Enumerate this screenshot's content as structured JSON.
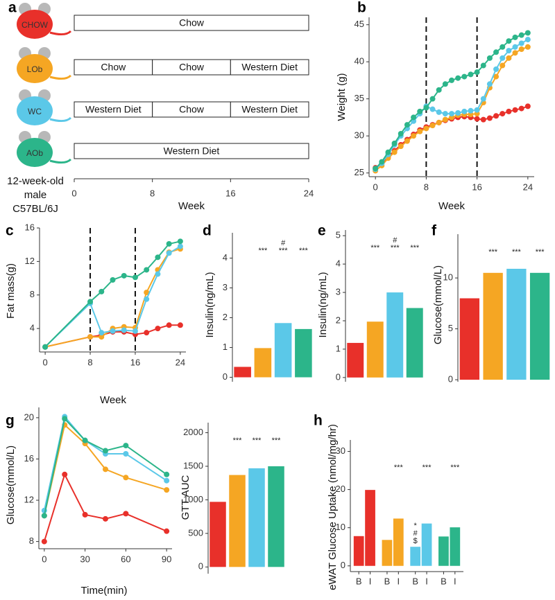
{
  "chart_data": [
    {
      "type": "schedule",
      "panel": "a",
      "groups": [
        {
          "name": "CHOW",
          "color": "#e8302a",
          "segments": [
            {
              "label": "Chow",
              "start": 0,
              "end": 24
            }
          ]
        },
        {
          "name": "LOb",
          "color": "#f5a623",
          "segments": [
            {
              "label": "Chow",
              "start": 0,
              "end": 8
            },
            {
              "label": "Chow",
              "start": 8,
              "end": 16
            },
            {
              "label": "Western Diet",
              "start": 16,
              "end": 24
            }
          ]
        },
        {
          "name": "WC",
          "color": "#5bc8e8",
          "segments": [
            {
              "label": "Western Diet",
              "start": 0,
              "end": 8
            },
            {
              "label": "Chow",
              "start": 8,
              "end": 16
            },
            {
              "label": "Western Diet",
              "start": 16,
              "end": 24
            }
          ]
        },
        {
          "name": "AOb",
          "color": "#2cb58a",
          "segments": [
            {
              "label": "Western Diet",
              "start": 0,
              "end": 24
            }
          ]
        }
      ],
      "note": "12-week-old male C57BL/6J",
      "xlim": [
        0,
        24
      ],
      "xticks": [
        0,
        8,
        16,
        24
      ],
      "x_label": "Week"
    },
    {
      "type": "line",
      "panel": "b",
      "y_label": "Weight (g)",
      "x_label": "Week",
      "x": [
        0,
        1,
        2,
        3,
        4,
        5,
        6,
        7,
        8,
        9,
        10,
        11,
        12,
        13,
        14,
        15,
        16,
        17,
        18,
        19,
        20,
        21,
        22,
        23,
        24
      ],
      "xlim": [
        -1,
        25
      ],
      "xticks": [
        0,
        8,
        16,
        24
      ],
      "ylim": [
        24.5,
        46
      ],
      "yticks": [
        25,
        30,
        35,
        40,
        45
      ],
      "vlines": [
        8,
        16
      ],
      "series": [
        {
          "color": "#e8302a",
          "values": [
            25.7,
            26.3,
            27.2,
            28,
            28.8,
            29.5,
            30.2,
            30.8,
            31.2,
            31.5,
            31.8,
            32.1,
            32.3,
            32.5,
            32.6,
            32.5,
            32.3,
            32.2,
            32.4,
            32.7,
            33.0,
            33.3,
            33.5,
            33.7,
            34.0
          ]
        },
        {
          "color": "#f5a623",
          "values": [
            25.3,
            26.0,
            27.0,
            27.8,
            28.6,
            29.3,
            30.0,
            30.6,
            31.0,
            31.4,
            31.8,
            32.2,
            32.5,
            32.8,
            32.9,
            32.9,
            33.0,
            34.5,
            36.5,
            38,
            39.5,
            40.5,
            41.2,
            41.7,
            42.0
          ]
        },
        {
          "color": "#5bc8e8",
          "values": [
            25.5,
            26.3,
            27.5,
            28.8,
            30.0,
            31.0,
            32.0,
            33.0,
            34.0,
            33.6,
            33.2,
            33.0,
            33.0,
            33.1,
            33.3,
            33.4,
            33.5,
            35,
            37,
            39,
            40.5,
            41.5,
            42,
            42.5,
            43
          ]
        },
        {
          "color": "#2cb58a",
          "values": [
            25.6,
            26.5,
            27.8,
            29,
            30.3,
            31.5,
            32.5,
            33.3,
            33.8,
            35,
            36.2,
            37,
            37.5,
            37.8,
            38,
            38.3,
            38.6,
            39.5,
            40.5,
            41.3,
            42,
            42.8,
            43.3,
            43.6,
            43.9
          ]
        }
      ]
    },
    {
      "type": "line",
      "panel": "c",
      "y_label": "Fat mass(g)",
      "x_label": "Week",
      "x": [
        0,
        8,
        10,
        12,
        14,
        16,
        18,
        20,
        22,
        24
      ],
      "xlim": [
        -1,
        25
      ],
      "xticks": [
        0,
        8,
        16,
        24
      ],
      "ylim": [
        1.2,
        16
      ],
      "yticks": [
        4,
        8,
        12,
        16
      ],
      "vlines": [
        8,
        16
      ],
      "series": [
        {
          "color": "#e8302a",
          "values": [
            1.8,
            3.0,
            3.2,
            3.6,
            3.6,
            3.3,
            3.5,
            4.0,
            4.4,
            4.4
          ]
        },
        {
          "color": "#f5a623",
          "values": [
            1.8,
            3.0,
            3.0,
            4.0,
            4.2,
            4.1,
            8.3,
            11.0,
            13.1,
            13.5
          ]
        },
        {
          "color": "#5bc8e8",
          "values": [
            1.8,
            7.0,
            3.5,
            3.7,
            3.8,
            3.7,
            7.5,
            10.5,
            13.0,
            13.8
          ]
        },
        {
          "color": "#2cb58a",
          "values": [
            1.8,
            7.2,
            8.4,
            9.8,
            10.3,
            10.1,
            11.0,
            12.5,
            14.1,
            14.4
          ]
        }
      ]
    },
    {
      "type": "bar",
      "panel": "d",
      "y_label": "Insulin(ng/mL)",
      "values": [
        0.35,
        0.98,
        1.82,
        1.62
      ],
      "colors": [
        "#e8302a",
        "#f5a623",
        "#5bc8e8",
        "#2cb58a"
      ],
      "ylim": [
        -0.15,
        4.85
      ],
      "yticks": [
        0,
        1,
        2,
        3,
        4
      ],
      "annotations": [
        null,
        [
          "***"
        ],
        [
          "#",
          "***"
        ],
        [
          "***"
        ]
      ]
    },
    {
      "type": "bar",
      "panel": "e",
      "y_label": "Insulin(ng/mL)",
      "values": [
        1.22,
        1.97,
        3.0,
        2.45
      ],
      "colors": [
        "#e8302a",
        "#f5a623",
        "#5bc8e8",
        "#2cb58a"
      ],
      "ylim": [
        -0.15,
        5.2
      ],
      "yticks": [
        0,
        1,
        2,
        3,
        4,
        5
      ],
      "annotations": [
        null,
        [
          "***"
        ],
        [
          "#",
          "***"
        ],
        [
          "***"
        ]
      ]
    },
    {
      "type": "bar",
      "panel": "f",
      "y_label": "Glucose(mmol/L)",
      "values": [
        8.0,
        10.5,
        10.9,
        10.5
      ],
      "colors": [
        "#e8302a",
        "#f5a623",
        "#5bc8e8",
        "#2cb58a"
      ],
      "ylim": [
        -0.2,
        14.3
      ],
      "yticks": [
        0,
        5,
        10
      ],
      "annotations": [
        null,
        [
          "***"
        ],
        [
          "***"
        ],
        [
          "***"
        ]
      ]
    },
    {
      "type": "line",
      "panel": "g",
      "y_label": "Glucose(mmol/L)",
      "x_label": "Time(min)",
      "x": [
        0,
        15,
        30,
        45,
        60,
        90
      ],
      "xlim": [
        -4,
        94
      ],
      "xticks": [
        0,
        30,
        60,
        90
      ],
      "ylim": [
        7.3,
        21
      ],
      "yticks": [
        8,
        12,
        16,
        20
      ],
      "series": [
        {
          "color": "#e8302a",
          "values": [
            8.0,
            14.5,
            10.6,
            10.2,
            10.7,
            9.0
          ]
        },
        {
          "color": "#f5a623",
          "values": [
            10.5,
            19.3,
            17.5,
            15.0,
            14.2,
            13.0
          ]
        },
        {
          "color": "#5bc8e8",
          "values": [
            11.0,
            20.1,
            17.8,
            16.5,
            16.5,
            13.9
          ]
        },
        {
          "color": "#2cb58a",
          "values": [
            10.5,
            19.9,
            17.8,
            16.8,
            17.3,
            14.5
          ]
        }
      ]
    },
    {
      "type": "bar",
      "y_label": "GTT AUC",
      "values": [
        970,
        1370,
        1470,
        1500
      ],
      "colors": [
        "#e8302a",
        "#f5a623",
        "#5bc8e8",
        "#2cb58a"
      ],
      "ylim": [
        -100,
        2150
      ],
      "yticks": [
        0,
        500,
        1000,
        1500,
        2000
      ],
      "annotations": [
        null,
        [
          "***"
        ],
        [
          "***"
        ],
        [
          "***"
        ]
      ]
    },
    {
      "type": "grouped",
      "panel": "h",
      "y_label": "eWAT Glucose Uptake (nmol/mg/hr)",
      "ylim": [
        -1.5,
        33
      ],
      "yticks": [
        0,
        10,
        20,
        30
      ],
      "groups": [
        {
          "color": "#e8302a",
          "categories": [
            "B",
            "I"
          ],
          "values": [
            7.8,
            19.9
          ],
          "annotations": [
            null,
            null
          ]
        },
        {
          "color": "#f5a623",
          "categories": [
            "B",
            "I"
          ],
          "values": [
            6.8,
            12.4
          ],
          "annotations": [
            null,
            [
              "***"
            ]
          ]
        },
        {
          "color": "#5bc8e8",
          "categories": [
            "B",
            "I"
          ],
          "values": [
            5.0,
            11.1
          ],
          "annotations": [
            [
              "*",
              "#",
              "$"
            ],
            [
              "***"
            ]
          ]
        },
        {
          "color": "#2cb58a",
          "categories": [
            "B",
            "I"
          ],
          "values": [
            7.7,
            10.1
          ],
          "annotations": [
            null,
            [
              "***"
            ]
          ]
        }
      ]
    }
  ]
}
